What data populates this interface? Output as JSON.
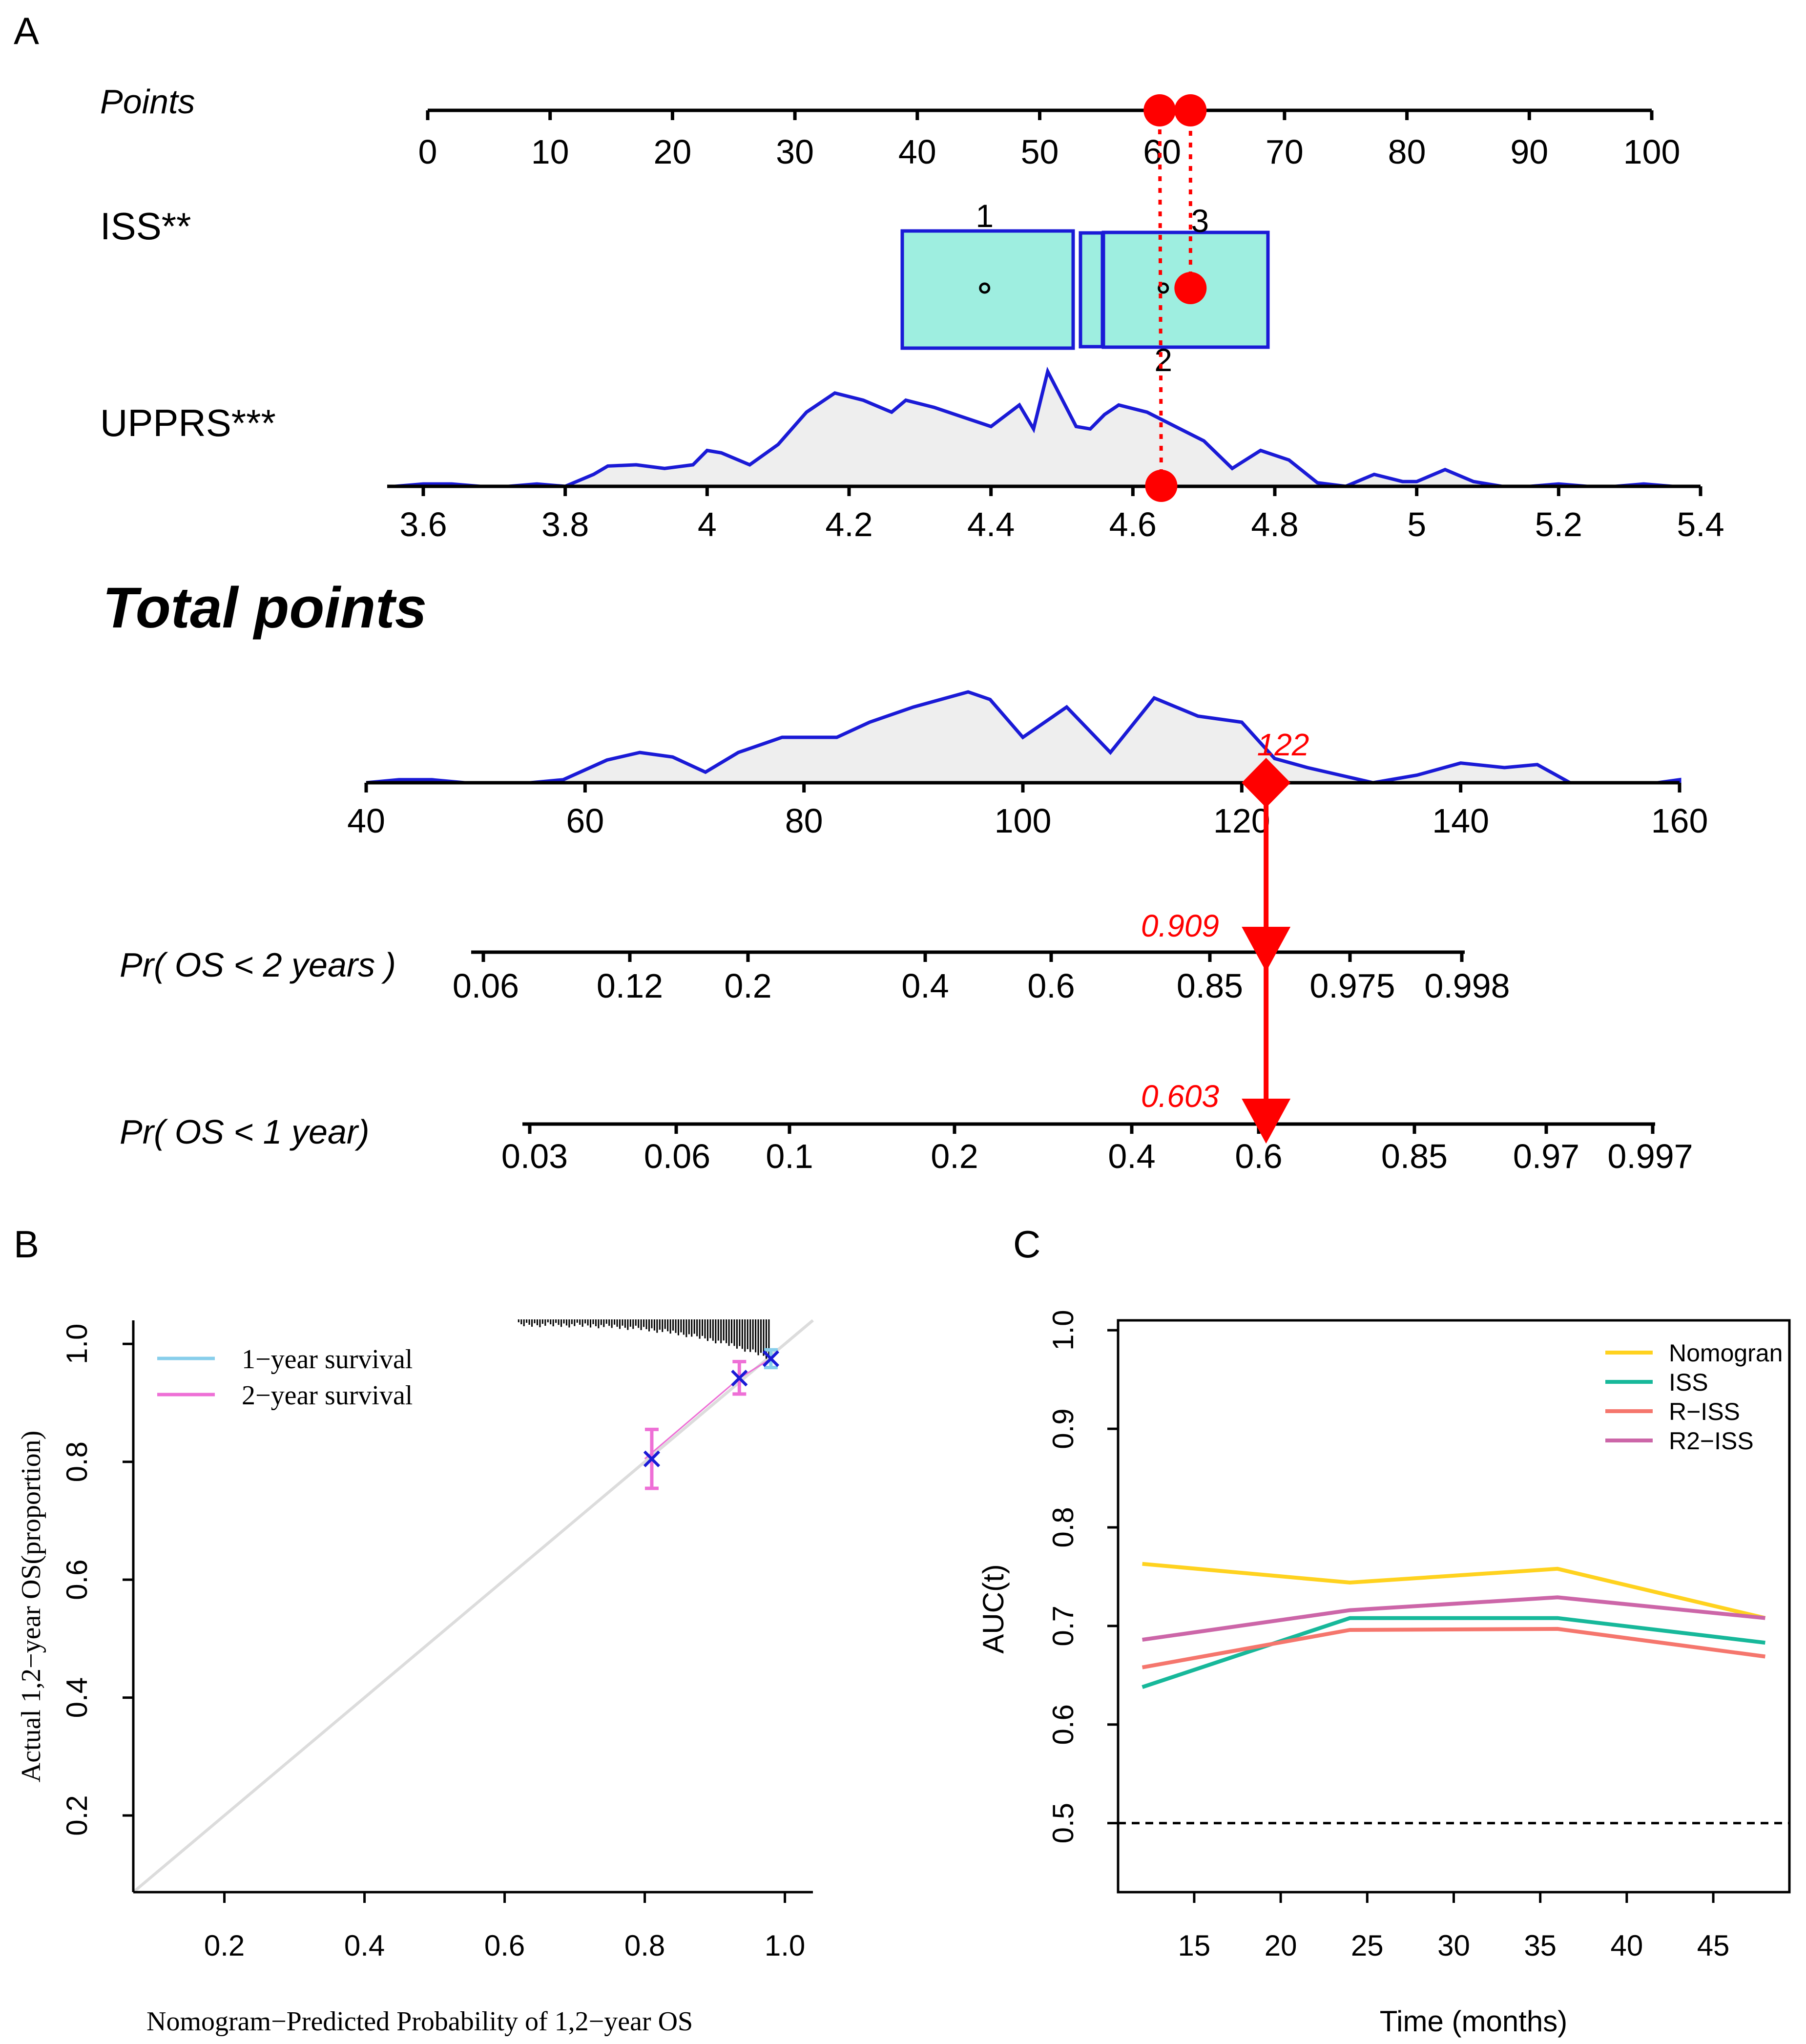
{
  "panel_labels": {
    "a": "A",
    "b": "B",
    "c": "C"
  },
  "colors": {
    "blue": "#1a1ad6",
    "red": "#ff0000",
    "box_fill": "#9eeee0",
    "density_fill": "#eeeeee",
    "cal_1yr": "#87ceeb",
    "cal_2yr": "#ee6fd6",
    "cal_x": "#1a1ad6",
    "nomogram": "#ffd21f",
    "iss": "#17b89a",
    "riss": "#f5766d",
    "r2iss": "#cc66a8"
  },
  "chart_data": [
    {
      "type": "nomogram",
      "panel": "A",
      "points_label": "Points",
      "points_axis": {
        "range": [
          0,
          100
        ],
        "ticks": [
          "0",
          "10",
          "20",
          "30",
          "40",
          "50",
          "60",
          "70",
          "80",
          "90",
          "100"
        ]
      },
      "points_markers": [
        60,
        62
      ],
      "iss": {
        "label": "ISS**",
        "levels": [
          {
            "name": "1",
            "points": 45.5
          },
          {
            "name": "2",
            "points": 60.5
          },
          {
            "name": "3",
            "points": 61.5
          }
        ],
        "selected_points": 62
      },
      "upprs": {
        "label": "UPPRS***",
        "axis": {
          "range": [
            3.6,
            5.4
          ],
          "ticks": [
            "3.6",
            "3.8",
            "4",
            "4.2",
            "4.4",
            "4.6",
            "4.8",
            "5",
            "5.2",
            "5.4"
          ]
        },
        "selected_value": 4.64,
        "density": [
          [
            3.56,
            0
          ],
          [
            3.6,
            0.02
          ],
          [
            3.64,
            0.02
          ],
          [
            3.68,
            0
          ],
          [
            3.72,
            0
          ],
          [
            3.76,
            0.02
          ],
          [
            3.8,
            0
          ],
          [
            3.84,
            0.1
          ],
          [
            3.86,
            0.17
          ],
          [
            3.9,
            0.18
          ],
          [
            3.94,
            0.15
          ],
          [
            3.98,
            0.18
          ],
          [
            4,
            0.3
          ],
          [
            4.02,
            0.28
          ],
          [
            4.06,
            0.18
          ],
          [
            4.1,
            0.35
          ],
          [
            4.14,
            0.62
          ],
          [
            4.18,
            0.78
          ],
          [
            4.22,
            0.72
          ],
          [
            4.26,
            0.62
          ],
          [
            4.28,
            0.72
          ],
          [
            4.32,
            0.66
          ],
          [
            4.36,
            0.58
          ],
          [
            4.4,
            0.5
          ],
          [
            4.44,
            0.68
          ],
          [
            4.46,
            0.48
          ],
          [
            4.48,
            0.96
          ],
          [
            4.52,
            0.5
          ],
          [
            4.54,
            0.48
          ],
          [
            4.56,
            0.6
          ],
          [
            4.58,
            0.68
          ],
          [
            4.62,
            0.62
          ],
          [
            4.66,
            0.5
          ],
          [
            4.7,
            0.38
          ],
          [
            4.74,
            0.15
          ],
          [
            4.78,
            0.3
          ],
          [
            4.82,
            0.22
          ],
          [
            4.86,
            0.03
          ],
          [
            4.9,
            0
          ],
          [
            4.94,
            0.1
          ],
          [
            4.98,
            0.04
          ],
          [
            5,
            0.04
          ],
          [
            5.04,
            0.14
          ],
          [
            5.08,
            0.04
          ],
          [
            5.12,
            0
          ],
          [
            5.16,
            0
          ],
          [
            5.2,
            0.02
          ],
          [
            5.24,
            0
          ],
          [
            5.28,
            0
          ],
          [
            5.32,
            0.02
          ],
          [
            5.36,
            0
          ]
        ]
      },
      "total_points": {
        "label": "Total points",
        "axis": {
          "range": [
            40,
            160
          ],
          "ticks": [
            "40",
            "60",
            "80",
            "100",
            "120",
            "140",
            "160"
          ]
        },
        "selected_value": 122,
        "selected_label": "122",
        "density": [
          [
            40,
            0
          ],
          [
            43,
            0.02
          ],
          [
            46,
            0.02
          ],
          [
            49,
            0
          ],
          [
            55,
            0
          ],
          [
            58,
            0.02
          ],
          [
            62,
            0.15
          ],
          [
            65,
            0.2
          ],
          [
            68,
            0.17
          ],
          [
            71,
            0.07
          ],
          [
            74,
            0.2
          ],
          [
            78,
            0.3
          ],
          [
            83,
            0.3
          ],
          [
            86,
            0.4
          ],
          [
            90,
            0.5
          ],
          [
            95,
            0.6
          ],
          [
            97,
            0.55
          ],
          [
            100,
            0.3
          ],
          [
            104,
            0.5
          ],
          [
            108,
            0.2
          ],
          [
            112,
            0.56
          ],
          [
            116,
            0.44
          ],
          [
            120,
            0.4
          ],
          [
            123,
            0.16
          ],
          [
            126,
            0.1
          ],
          [
            129,
            0.05
          ],
          [
            132,
            0
          ],
          [
            136,
            0.05
          ],
          [
            140,
            0.13
          ],
          [
            144,
            0.1
          ],
          [
            147,
            0.12
          ],
          [
            150,
            0
          ],
          [
            158,
            0
          ],
          [
            160,
            0.02
          ]
        ]
      },
      "prob_2yr": {
        "label": "Pr( OS < 2 years )",
        "ticks": [
          "0.06",
          "0.12",
          "0.2",
          "0.4",
          "0.6",
          "0.85",
          "0.975",
          "0.998"
        ],
        "selected_label": "0.909"
      },
      "prob_1yr": {
        "label": "Pr( OS < 1 year)",
        "ticks": [
          "0.03",
          "0.06",
          "0.1",
          "0.2",
          "0.4",
          "0.6",
          "0.85",
          "0.97",
          "0.997"
        ],
        "selected_label": "0.603"
      }
    },
    {
      "type": "scatter",
      "panel": "B",
      "title": "",
      "xlabel": "Nomogram−Predicted Probability of 1,2−year OS",
      "ylabel": "Actual 1,2−year OS(proportion)",
      "xlim": [
        0.07,
        1.04
      ],
      "ylim": [
        0.07,
        1.04
      ],
      "xticks": [
        "0.2",
        "0.4",
        "0.6",
        "0.8",
        "1.0"
      ],
      "yticks": [
        "0.2",
        "0.4",
        "0.6",
        "0.8",
        "1.0"
      ],
      "legend": [
        "1−year survival",
        "2−year survival"
      ],
      "series": [
        {
          "name": "1−year survival",
          "points": [
            {
              "x": 0.98,
              "y": 0.975,
              "lo": 0.96,
              "hi": 0.99
            }
          ]
        },
        {
          "name": "2−year survival",
          "points": [
            {
              "x": 0.81,
              "y": 0.805,
              "lo": 0.755,
              "hi": 0.855
            },
            {
              "x": 0.935,
              "y": 0.942,
              "lo": 0.915,
              "hi": 0.97
            }
          ]
        }
      ]
    },
    {
      "type": "line",
      "panel": "C",
      "xlabel": "Time (months)",
      "ylabel": "AUC(t)",
      "xlim": [
        10.6,
        49.4
      ],
      "ylim": [
        0.43,
        1.01
      ],
      "xticks": [
        "15",
        "20",
        "25",
        "30",
        "35",
        "40",
        "45"
      ],
      "yticks": [
        "0.5",
        "0.6",
        "0.7",
        "0.8",
        "0.9",
        "1.0"
      ],
      "reference_line": 0.5,
      "x": [
        12,
        24,
        36,
        48
      ],
      "series": [
        {
          "name": "Nomogran",
          "values": [
            0.763,
            0.744,
            0.758,
            0.708
          ]
        },
        {
          "name": "ISS",
          "values": [
            0.638,
            0.708,
            0.708,
            0.683
          ]
        },
        {
          "name": "R−ISS",
          "values": [
            0.658,
            0.696,
            0.697,
            0.669
          ]
        },
        {
          "name": "R2−ISS",
          "values": [
            0.686,
            0.716,
            0.729,
            0.708
          ]
        }
      ]
    }
  ]
}
